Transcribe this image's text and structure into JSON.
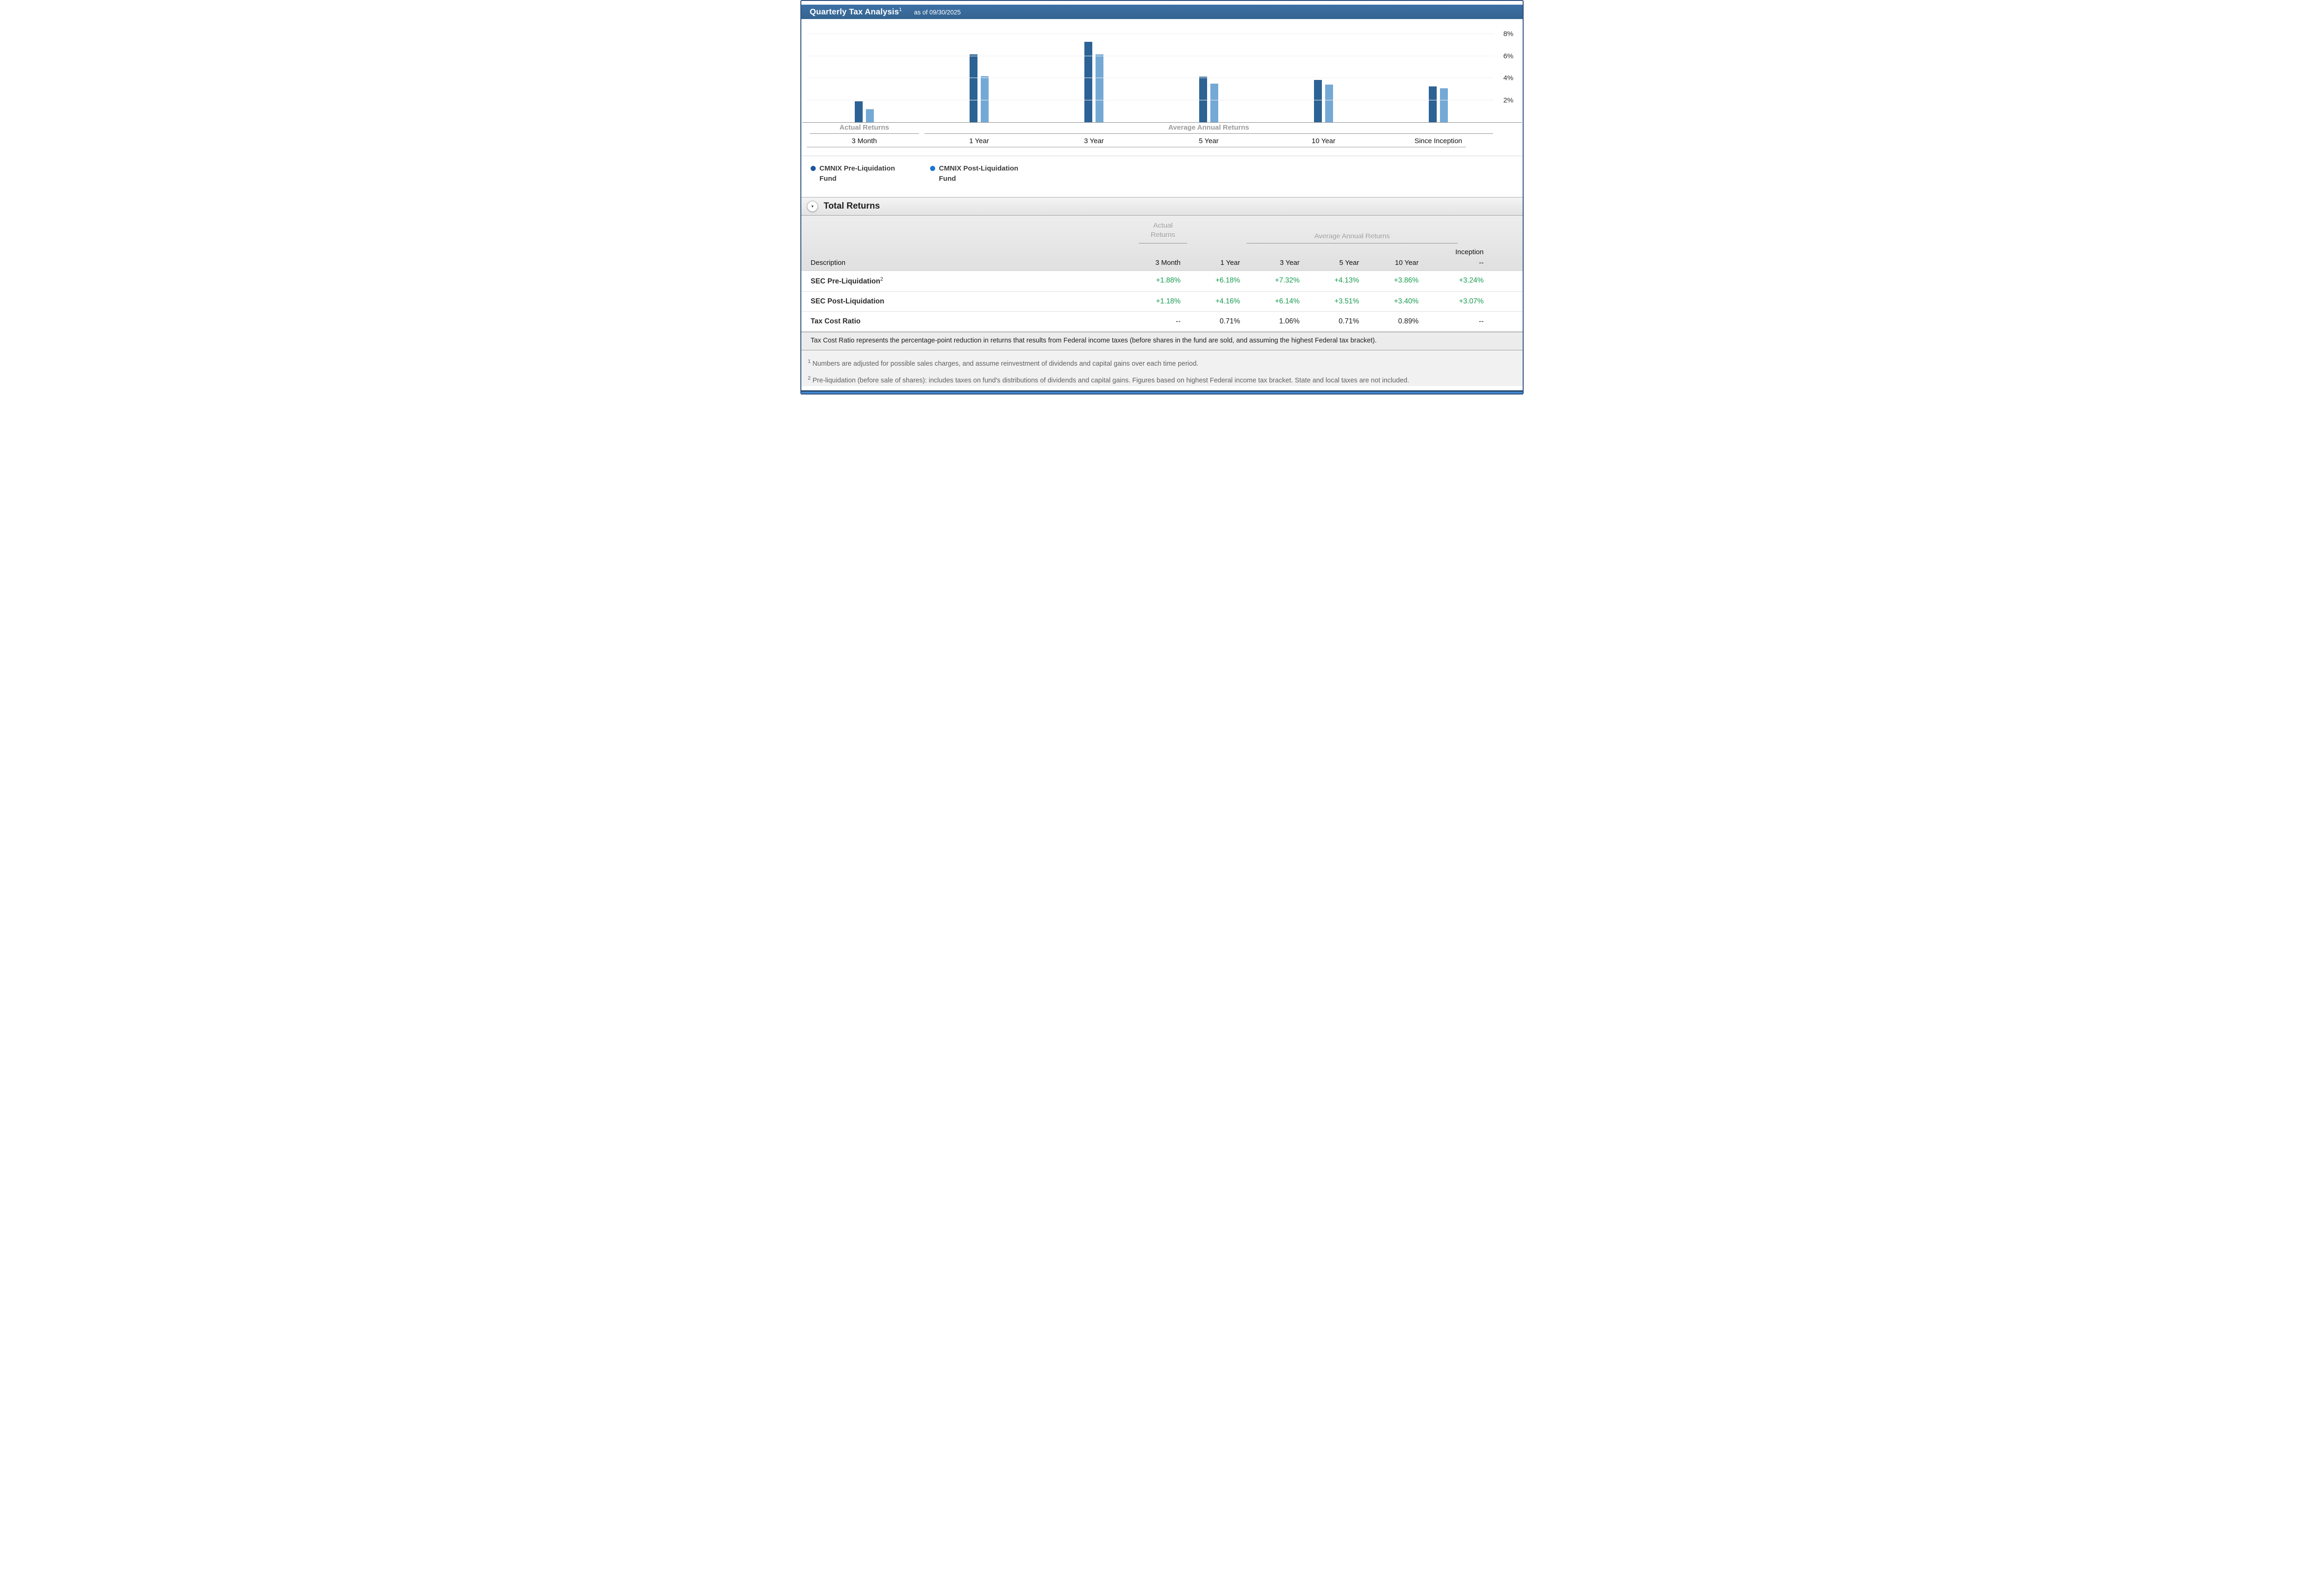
{
  "header": {
    "title": "Quarterly Tax Analysis",
    "title_sup": "1",
    "as_of": "as of 09/30/2025"
  },
  "chart_data": {
    "type": "bar",
    "title": "Quarterly Tax Analysis as of 09/30/2025",
    "categories": [
      "3 Month",
      "1 Year",
      "3 Year",
      "5 Year",
      "10 Year",
      "Since Inception"
    ],
    "series": [
      {
        "name": "CMNIX Pre-Liquidation Fund",
        "color": "#2d6295",
        "values": [
          1.88,
          6.18,
          7.32,
          4.13,
          3.86,
          3.24
        ]
      },
      {
        "name": "CMNIX Post-Liquidation Fund",
        "color": "#74a9d6",
        "values": [
          1.18,
          4.16,
          6.14,
          3.51,
          3.4,
          3.07
        ]
      }
    ],
    "ylim": [
      0,
      8
    ],
    "y_tick_interval": 2,
    "y_tick_labels": [
      "2%",
      "4%",
      "6%",
      "8%"
    ],
    "ylabel": "",
    "xlabel": "",
    "grid": "faint horizontal",
    "legend_position": "below-left",
    "section_groups": [
      {
        "label": "Actual Returns",
        "span": 1
      },
      {
        "label": "Average Annual Returns",
        "span": 5
      }
    ]
  },
  "chart_sections": {
    "actual": "Actual Returns",
    "average": "Average Annual Returns"
  },
  "legend": {
    "items": [
      {
        "label": "CMNIX Pre-Liquidation Fund",
        "color": "#1d55a0"
      },
      {
        "label": "CMNIX Post-Liquidation Fund",
        "color": "#1e74d0"
      }
    ]
  },
  "total_returns": {
    "title": "Total Returns",
    "toggle_icon": "▾",
    "group_headers": {
      "actual": "Actual\nReturns",
      "average": "Average Annual Returns"
    },
    "columns": {
      "description": "Description",
      "c1": "3 Month",
      "c2": "1 Year",
      "c3": "3 Year",
      "c4": "5 Year",
      "c5": "10 Year",
      "inception_label": "Inception",
      "inception_sub": "--"
    },
    "rows": [
      {
        "label": "SEC Pre-Liquidation",
        "label_sup": "2",
        "value_color": "green",
        "values": [
          "+1.88%",
          "+6.18%",
          "+7.32%",
          "+4.13%",
          "+3.86%",
          "+3.24%"
        ]
      },
      {
        "label": "SEC Post-Liquidation",
        "label_sup": "",
        "value_color": "green",
        "values": [
          "+1.18%",
          "+4.16%",
          "+6.14%",
          "+3.51%",
          "+3.40%",
          "+3.07%"
        ]
      },
      {
        "label": "Tax Cost Ratio",
        "label_sup": "",
        "value_color": "black",
        "values": [
          "--",
          "0.71%",
          "1.06%",
          "0.71%",
          "0.89%",
          "--"
        ]
      }
    ],
    "note": "Tax Cost Ratio represents the percentage-point reduction in returns that results from Federal income taxes (before shares in the fund are sold, and assuming the highest Federal tax bracket)."
  },
  "footnotes": [
    {
      "sup": "1",
      "text": "Numbers are adjusted for possible sales charges, and assume reinvestment of dividends and capital gains over each time period."
    },
    {
      "sup": "2",
      "text": "Pre-liquidation (before sale of shares): includes taxes on fund's distributions of dividends and capital gains. Figures based on highest Federal income tax bracket. State and local taxes are not included."
    }
  ],
  "colors": {
    "titlebar_blue": "#386a9e",
    "bar_pre": "#2d6295",
    "bar_post": "#74a9d6",
    "positive_green": "#169a50",
    "muted_gray_label": "#9b9b9b",
    "page_border": "#2b4d7d",
    "bottom_strip_blue": "#4587cd"
  }
}
